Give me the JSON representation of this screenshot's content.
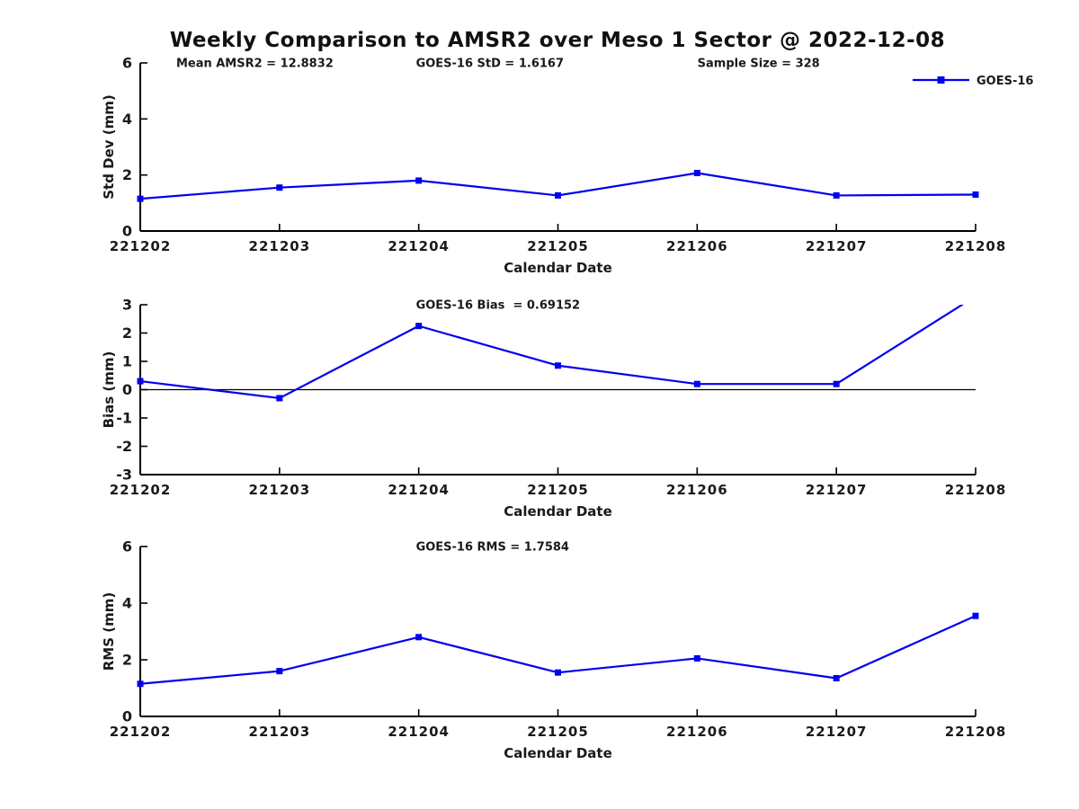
{
  "title": "Weekly Comparison to AMSR2 over Meso 1 Sector @ 2022-12-08",
  "legend": {
    "label": "GOES-16",
    "position": "northeast"
  },
  "colors": {
    "line": "#0000ee",
    "marker": "#0000ee",
    "axis": "#000000",
    "text": "#1a1a1a"
  },
  "chart_data": [
    {
      "type": "line",
      "categories": [
        "221202",
        "221203",
        "221204",
        "221205",
        "221206",
        "221207",
        "221208"
      ],
      "series": [
        {
          "name": "GOES-16",
          "values": [
            1.15,
            1.55,
            1.8,
            1.27,
            2.07,
            1.27,
            1.3
          ]
        }
      ],
      "annotations": [
        "Mean AMSR2 = 12.8832",
        "GOES-16 StD = 1.6167",
        "Sample Size = 328"
      ],
      "xlabel": "Calendar Date",
      "ylabel": "Std Dev (mm)",
      "ylim": [
        0,
        6
      ],
      "yticks": [
        0,
        2,
        4,
        6
      ],
      "zero_line": false,
      "grid": false,
      "marker": "square"
    },
    {
      "type": "line",
      "categories": [
        "221202",
        "221203",
        "221204",
        "221205",
        "221206",
        "221207",
        "221208"
      ],
      "series": [
        {
          "name": "GOES-16",
          "values": [
            0.3,
            -0.3,
            2.25,
            0.85,
            0.2,
            0.2,
            3.3
          ]
        }
      ],
      "annotations": [
        "GOES-16 Bias  = 0.69152"
      ],
      "xlabel": "Calendar Date",
      "ylabel": "Bias (mm)",
      "ylim": [
        -3,
        3
      ],
      "yticks": [
        -3,
        -2,
        -1,
        0,
        1,
        2,
        3
      ],
      "zero_line": true,
      "grid": false,
      "marker": "square",
      "note": "last point exceeds ylim and is clipped at top of axes"
    },
    {
      "type": "line",
      "categories": [
        "221202",
        "221203",
        "221204",
        "221205",
        "221206",
        "221207",
        "221208"
      ],
      "series": [
        {
          "name": "GOES-16",
          "values": [
            1.15,
            1.6,
            2.8,
            1.55,
            2.05,
            1.35,
            3.55
          ]
        }
      ],
      "annotations": [
        "GOES-16 RMS = 1.7584"
      ],
      "xlabel": "Calendar Date",
      "ylabel": "RMS (mm)",
      "ylim": [
        0,
        6
      ],
      "yticks": [
        0,
        2,
        4,
        6
      ],
      "zero_line": false,
      "grid": false,
      "marker": "square"
    }
  ]
}
